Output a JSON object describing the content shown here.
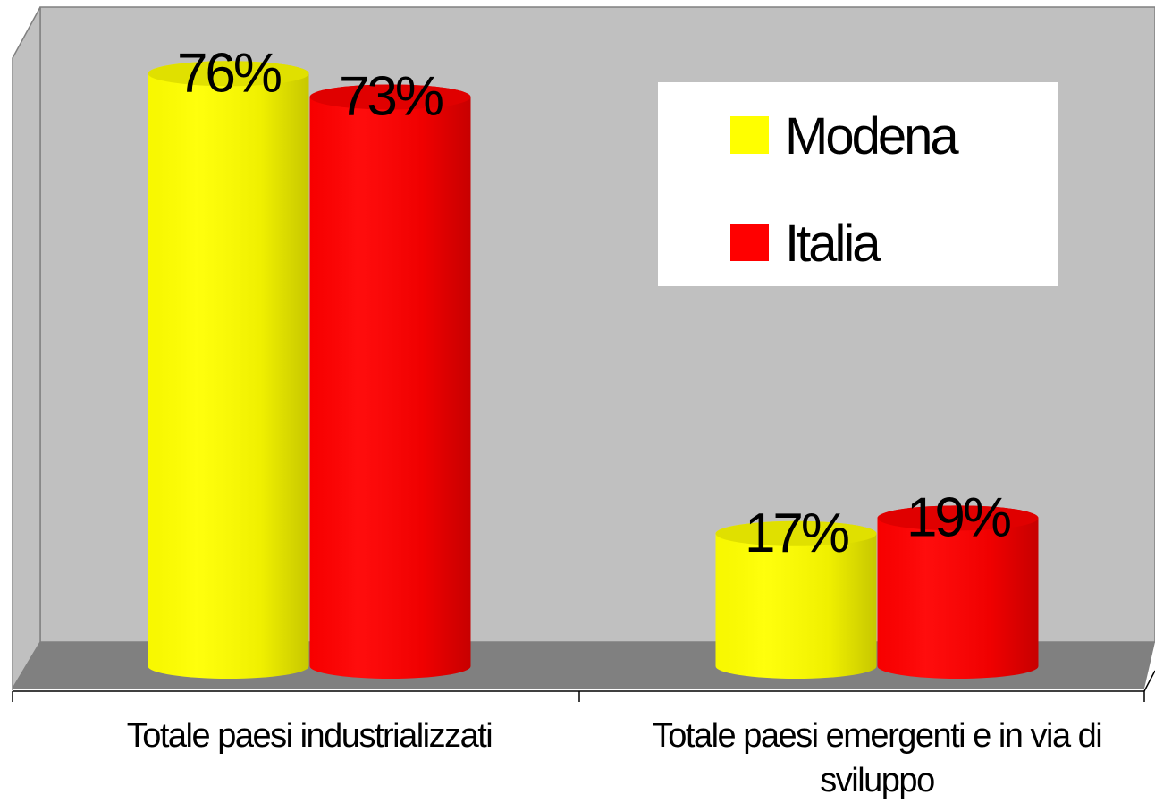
{
  "chart_data": {
    "type": "bar3d-cylinder",
    "categories": [
      "Totale paesi industrializzati",
      "Totale paesi emergenti e in via di sviluppo"
    ],
    "series": [
      {
        "name": "Modena",
        "color": "#ffff00",
        "values": [
          76,
          17
        ],
        "value_labels": [
          "76%",
          "17%"
        ]
      },
      {
        "name": "Italia",
        "color": "#ff0000",
        "values": [
          73,
          19
        ],
        "value_labels": [
          "73%",
          "19%"
        ]
      }
    ]
  }
}
